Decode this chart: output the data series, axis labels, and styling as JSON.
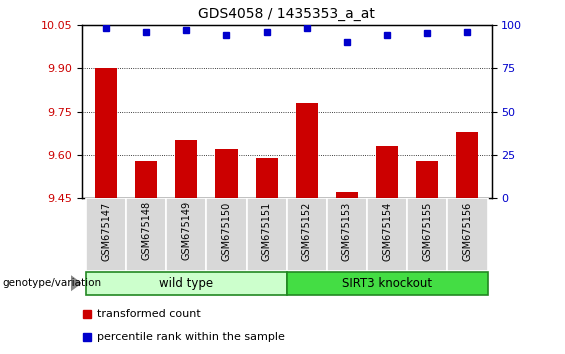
{
  "title": "GDS4058 / 1435353_a_at",
  "categories": [
    "GSM675147",
    "GSM675148",
    "GSM675149",
    "GSM675150",
    "GSM675151",
    "GSM675152",
    "GSM675153",
    "GSM675154",
    "GSM675155",
    "GSM675156"
  ],
  "bar_values": [
    9.9,
    9.58,
    9.65,
    9.62,
    9.59,
    9.78,
    9.47,
    9.63,
    9.58,
    9.68
  ],
  "percentile_values": [
    98,
    96,
    97,
    94,
    96,
    98,
    90,
    94,
    95,
    96
  ],
  "ylim_left": [
    9.45,
    10.05
  ],
  "ylim_right": [
    0,
    100
  ],
  "yticks_left": [
    9.45,
    9.6,
    9.75,
    9.9,
    10.05
  ],
  "yticks_right": [
    0,
    25,
    50,
    75,
    100
  ],
  "bar_color": "#cc0000",
  "dot_color": "#0000cc",
  "wild_type_indices": [
    0,
    1,
    2,
    3,
    4
  ],
  "knockout_indices": [
    5,
    6,
    7,
    8,
    9
  ],
  "wild_type_label": "wild type",
  "knockout_label": "SIRT3 knockout",
  "wild_type_color": "#ccffcc",
  "knockout_color": "#44dd44",
  "genotype_label": "genotype/variation",
  "legend_bar_label": "transformed count",
  "legend_dot_label": "percentile rank within the sample",
  "tick_label_color_left": "#cc0000",
  "tick_label_color_right": "#0000cc",
  "background_color": "#ffffff",
  "plot_bg_color": "#ffffff",
  "grid_color": "#000000"
}
